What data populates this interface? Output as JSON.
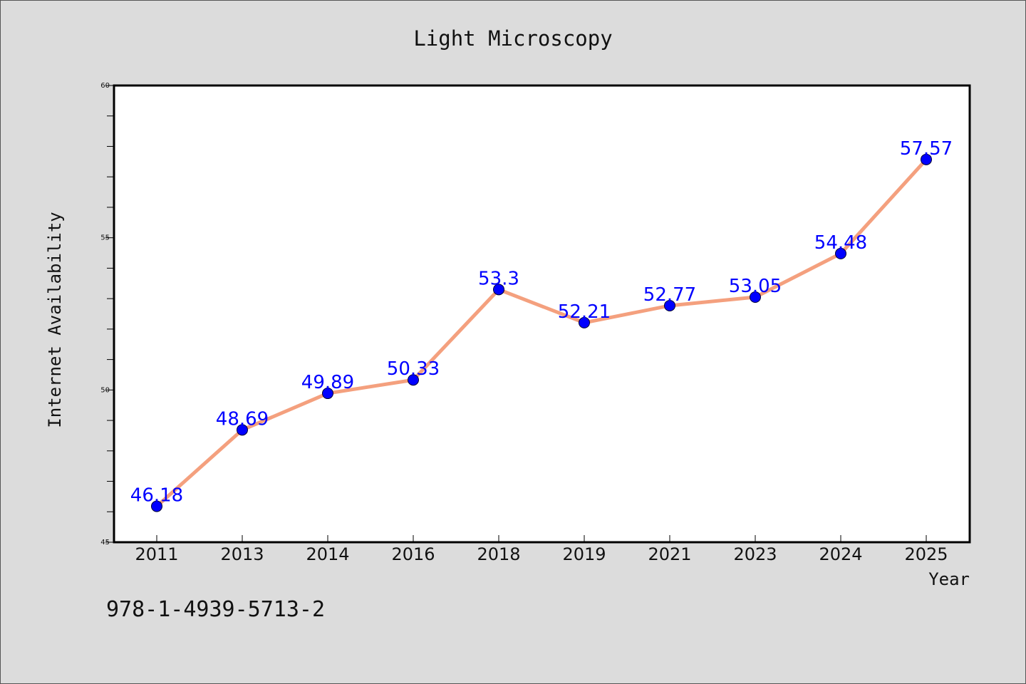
{
  "chart_data": {
    "type": "line",
    "title": "Light Microscopy",
    "xlabel": "Year",
    "ylabel": "Internet Availability",
    "categories": [
      "2011",
      "2013",
      "2014",
      "2016",
      "2018",
      "2019",
      "2021",
      "2023",
      "2024",
      "2025"
    ],
    "series": [
      {
        "values": [
          46.18,
          48.69,
          49.89,
          50.33,
          53.3,
          52.21,
          52.77,
          53.05,
          54.48,
          57.57
        ],
        "data_labels": [
          "46.18",
          "48.69",
          "49.89",
          "50.33",
          "53.3",
          "52.21",
          "52.77",
          "53.05",
          "54.48",
          "57.57"
        ]
      }
    ],
    "ylim": [
      45,
      60
    ],
    "y_ticks": [
      "45",
      "50",
      "55",
      "60"
    ],
    "grid": false,
    "legend": "none",
    "colors": {
      "line": "#f4a07e",
      "marker": "#0000ff",
      "data_label": "#0000ff",
      "plot_background": "#ffffff",
      "figure_background": "#dcdcdc"
    }
  },
  "footer_text": "978-1-4939-5713-2"
}
